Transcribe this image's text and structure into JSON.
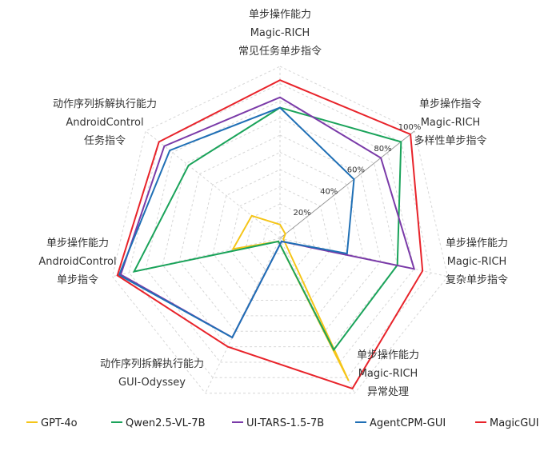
{
  "chart_data": {
    "type": "radar",
    "axes": [
      [
        "单步操作能力",
        "Magic-RICH",
        "常见任务单步指令"
      ],
      [
        "单步操作指令",
        "Magic-RICH",
        "多样性单步指令"
      ],
      [
        "单步操作能力",
        "Magic-RICH",
        "复杂单步指令"
      ],
      [
        "单步操作能力",
        "Magic-RICH",
        "异常处理"
      ],
      [
        "动作序列拆解执行能力",
        "GUI-Odyssey",
        ""
      ],
      [
        "单步操作能力",
        "AndroidControl",
        "单步指令"
      ],
      [
        "动作序列拆解执行能力",
        "AndroidControl",
        "任务指令"
      ]
    ],
    "ticks": [
      {
        "value": 20,
        "label": "20%"
      },
      {
        "value": 40,
        "label": "40%"
      },
      {
        "value": 60,
        "label": "60%"
      },
      {
        "value": 80,
        "label": "80%"
      },
      {
        "value": 100,
        "label": "100%"
      }
    ],
    "range": [
      0,
      100
    ],
    "grid": true,
    "legend_position": "bottom",
    "series": [
      {
        "name": "GPT-4o",
        "color": "#f5c518",
        "values": [
          8,
          4,
          2,
          92,
          2,
          28,
          21
        ]
      },
      {
        "name": "Qwen2.5-VL-7B",
        "color": "#1aa35a",
        "values": [
          76,
          90,
          70,
          72,
          2,
          87,
          68
        ]
      },
      {
        "name": "UI-TARS-1.5-7B",
        "color": "#7a3aa8",
        "values": [
          82,
          75,
          80,
          2,
          64,
          95,
          86
        ]
      },
      {
        "name": "AgentCPM-GUI",
        "color": "#1f6fb5",
        "values": [
          76,
          55,
          40,
          2,
          64,
          96,
          82
        ]
      },
      {
        "name": "MagicGUI",
        "color": "#e8232a",
        "values": [
          92,
          97,
          85,
          97,
          70,
          97,
          90
        ]
      }
    ]
  }
}
